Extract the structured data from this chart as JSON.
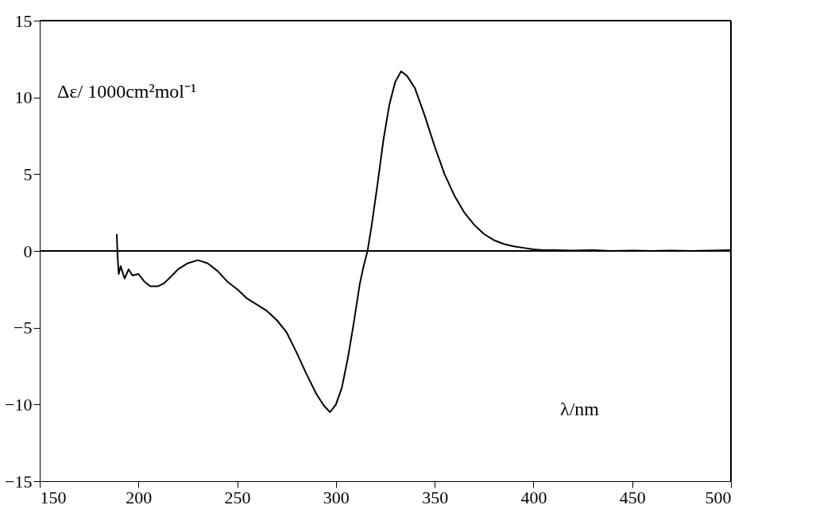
{
  "chart_data": {
    "type": "line",
    "xlabel": "λ/nm",
    "ylabel": "Δε/ 1000cm²mol⁻¹",
    "xlim": [
      150,
      500
    ],
    "xticks": [
      150,
      200,
      250,
      300,
      350,
      400,
      450,
      500
    ],
    "ylim": [
      -15,
      15
    ],
    "yticks": [
      -15,
      -10,
      -5,
      0,
      5,
      10,
      15
    ],
    "grid": false,
    "ref_lines": [
      {
        "axis": "y",
        "value": 0,
        "color": "#000000"
      }
    ],
    "series": [
      {
        "color": "#000000",
        "x": [
          189,
          189.5,
          190,
          191,
          193,
          195,
          197,
          200,
          203,
          206,
          210,
          213,
          217,
          220,
          225,
          230,
          235,
          240,
          245,
          250,
          255,
          260,
          265,
          270,
          275,
          280,
          285,
          290,
          294,
          297,
          300,
          303,
          306,
          309,
          312,
          314,
          316,
          318,
          321,
          324,
          327,
          330,
          333,
          336,
          340,
          345,
          350,
          355,
          360,
          365,
          370,
          375,
          380,
          385,
          390,
          395,
          400,
          405,
          410,
          420,
          430,
          440,
          450,
          460,
          470,
          480,
          490,
          500
        ],
        "values": [
          1.1,
          -0.5,
          -1.5,
          -1.0,
          -1.8,
          -1.2,
          -1.6,
          -1.5,
          -2.0,
          -2.3,
          -2.3,
          -2.1,
          -1.6,
          -1.2,
          -0.8,
          -0.6,
          -0.8,
          -1.3,
          -2.0,
          -2.5,
          -3.1,
          -3.5,
          -3.9,
          -4.5,
          -5.3,
          -6.6,
          -8.0,
          -9.3,
          -10.1,
          -10.5,
          -10.0,
          -8.9,
          -7.0,
          -4.7,
          -2.2,
          -1.0,
          0.0,
          1.6,
          4.3,
          7.2,
          9.5,
          11.0,
          11.7,
          11.4,
          10.6,
          8.8,
          6.8,
          5.0,
          3.6,
          2.5,
          1.7,
          1.1,
          0.7,
          0.45,
          0.3,
          0.2,
          0.1,
          0.05,
          0.05,
          0.03,
          0.05,
          0.0,
          0.03,
          0.0,
          0.03,
          0.0,
          0.03,
          0.05
        ]
      }
    ]
  }
}
